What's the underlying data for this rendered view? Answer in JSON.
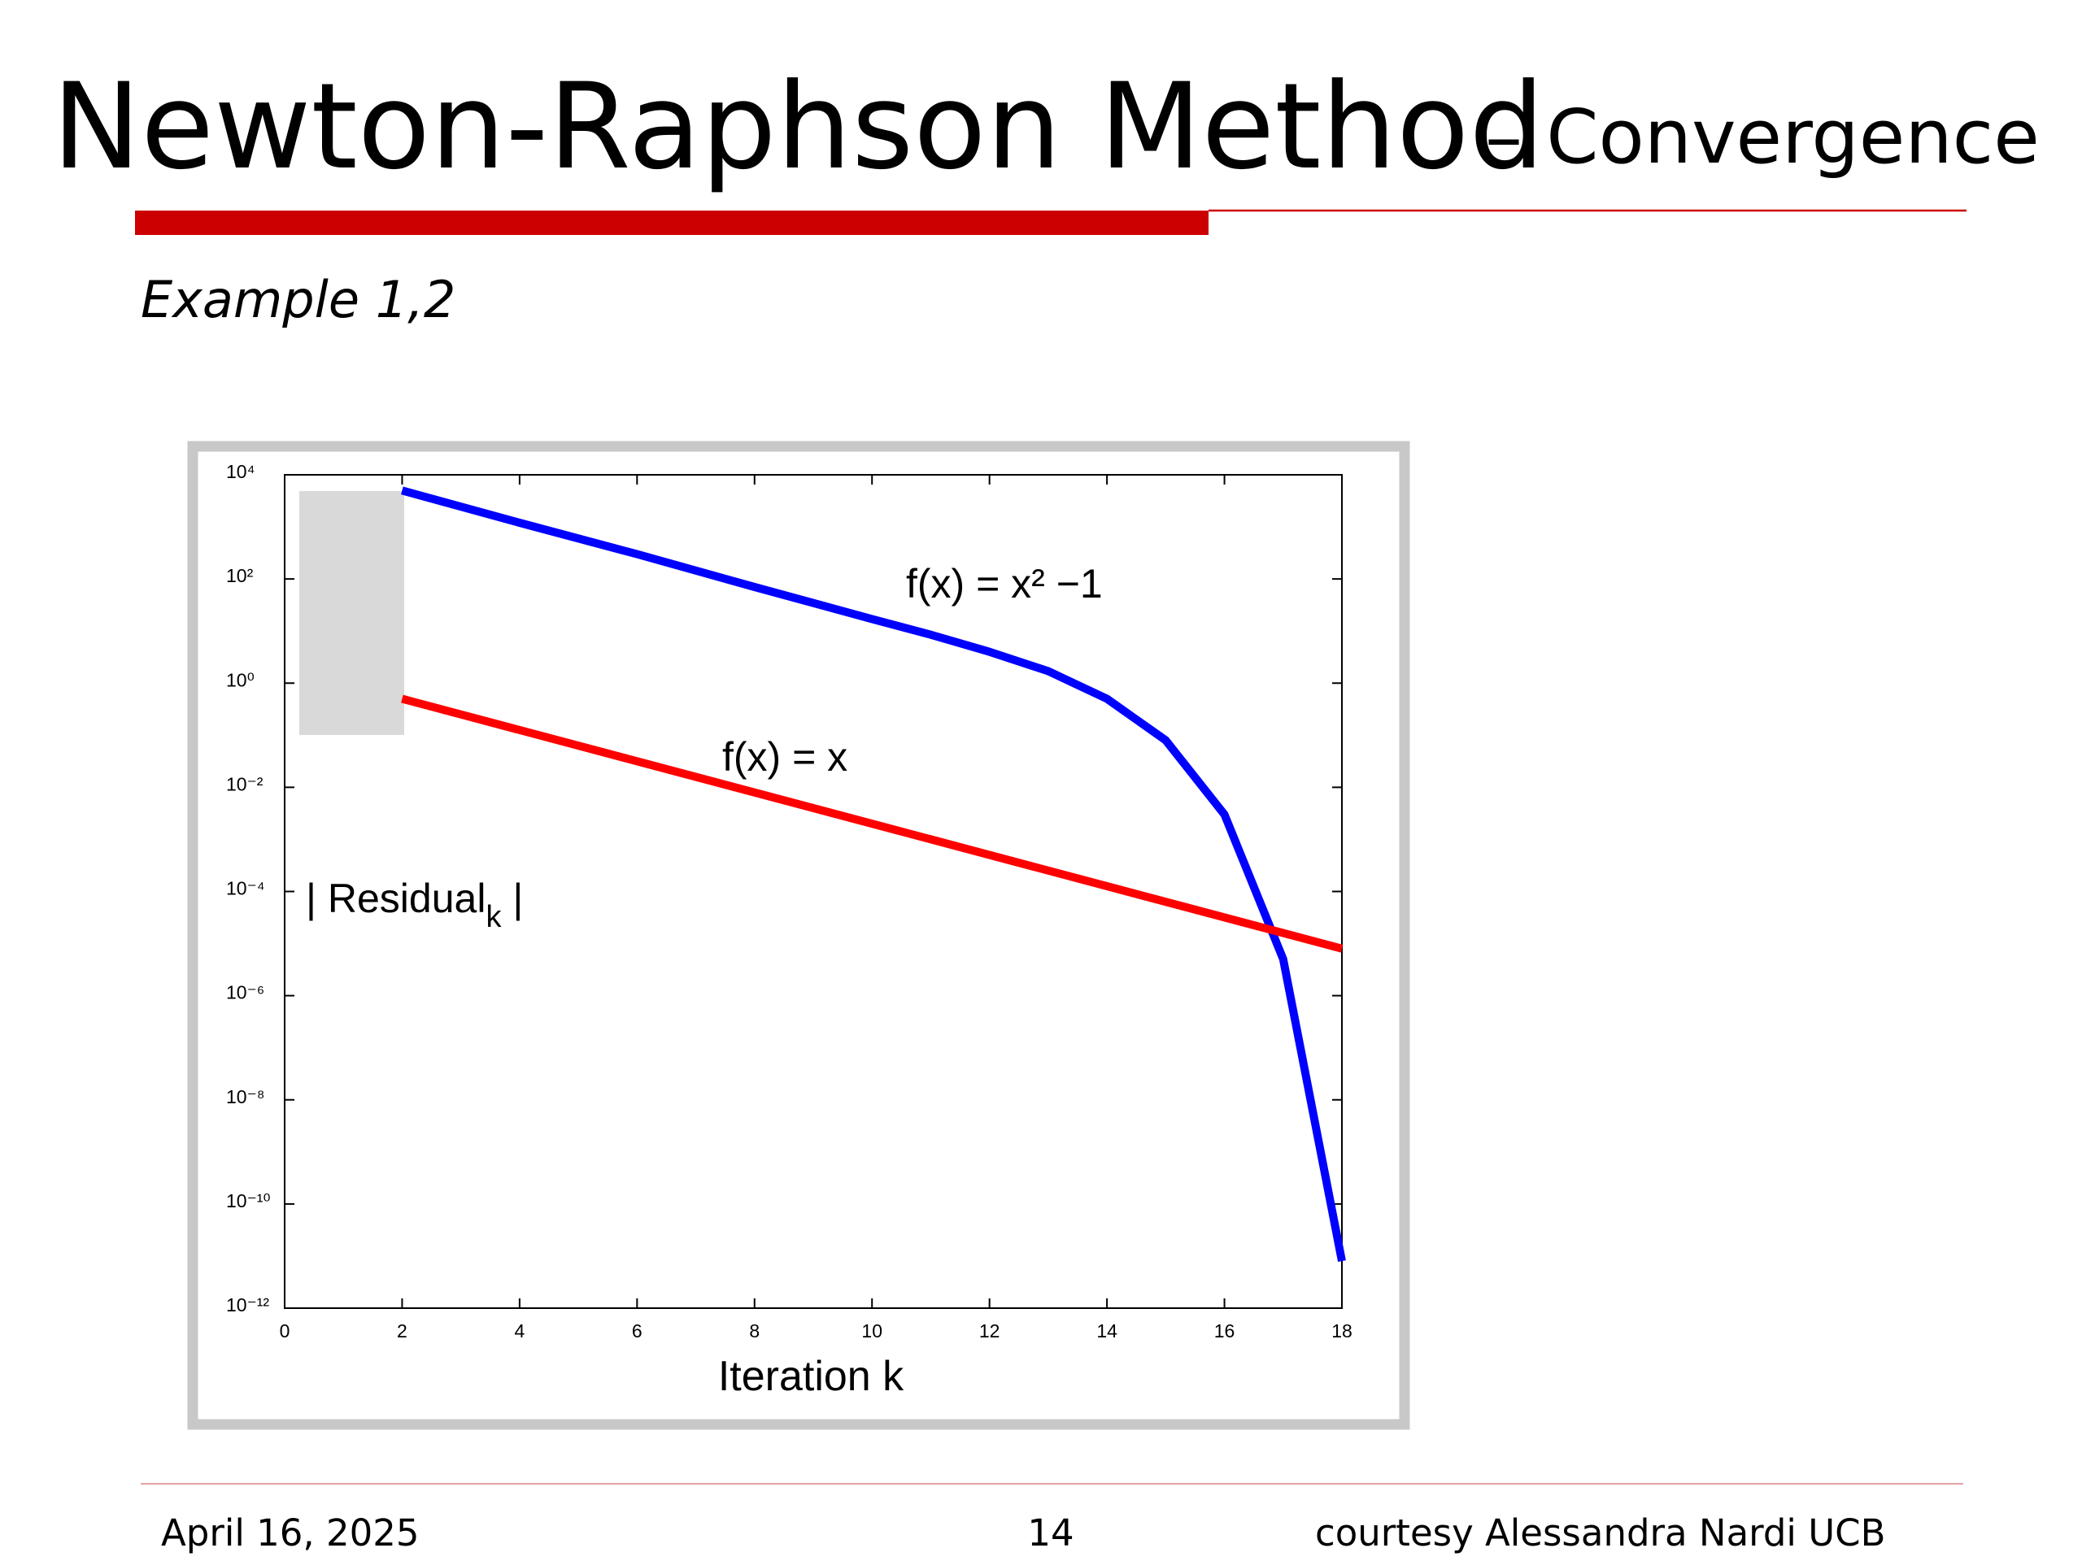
{
  "header": {
    "title": "Newton-Raphson Method",
    "subtitle": "– Convergence"
  },
  "example": "Example 1,2",
  "chart_data": {
    "type": "line",
    "log_y": true,
    "xlabel": "Iteration k",
    "ylabel": {
      "text": "| Residual",
      "subscript": "k",
      "end": " |"
    },
    "annotations": [
      "f(x) = x² −1",
      "f(x) = x"
    ],
    "xlim": [
      0,
      18
    ],
    "xticks": [
      0,
      2,
      4,
      6,
      8,
      10,
      12,
      14,
      16,
      18
    ],
    "ylim": [
      1e-12,
      10000
    ],
    "yticks": [
      {
        "value": 10000,
        "label": "10⁴"
      },
      {
        "value": 100,
        "label": "10²"
      },
      {
        "value": 1,
        "label": "10⁰"
      },
      {
        "value": 0.01,
        "label": "10⁻²"
      },
      {
        "value": 0.0001,
        "label": "10⁻⁴"
      },
      {
        "value": 1e-06,
        "label": "10⁻⁶"
      },
      {
        "value": 1e-08,
        "label": "10⁻⁸"
      },
      {
        "value": 1e-10,
        "label": "10⁻¹⁰"
      },
      {
        "value": 1e-12,
        "label": "10⁻¹²"
      }
    ],
    "series": [
      {
        "color": "#0000ff",
        "x": [
          2,
          4,
          6,
          8,
          10,
          11,
          12,
          13,
          14,
          15,
          16,
          17,
          18
        ],
        "values": [
          5000,
          1200,
          300,
          70,
          17,
          8.5,
          4,
          1.7,
          0.5,
          0.08,
          0.003,
          5e-06,
          8e-12
        ]
      },
      {
        "color": "#ff0000",
        "x": [
          2,
          18
        ],
        "values": [
          0.5,
          8e-06
        ]
      }
    ]
  },
  "footer": {
    "date": "April 16, 2025",
    "page": "14",
    "credit": "courtesy Alessandra Nardi UCB"
  }
}
